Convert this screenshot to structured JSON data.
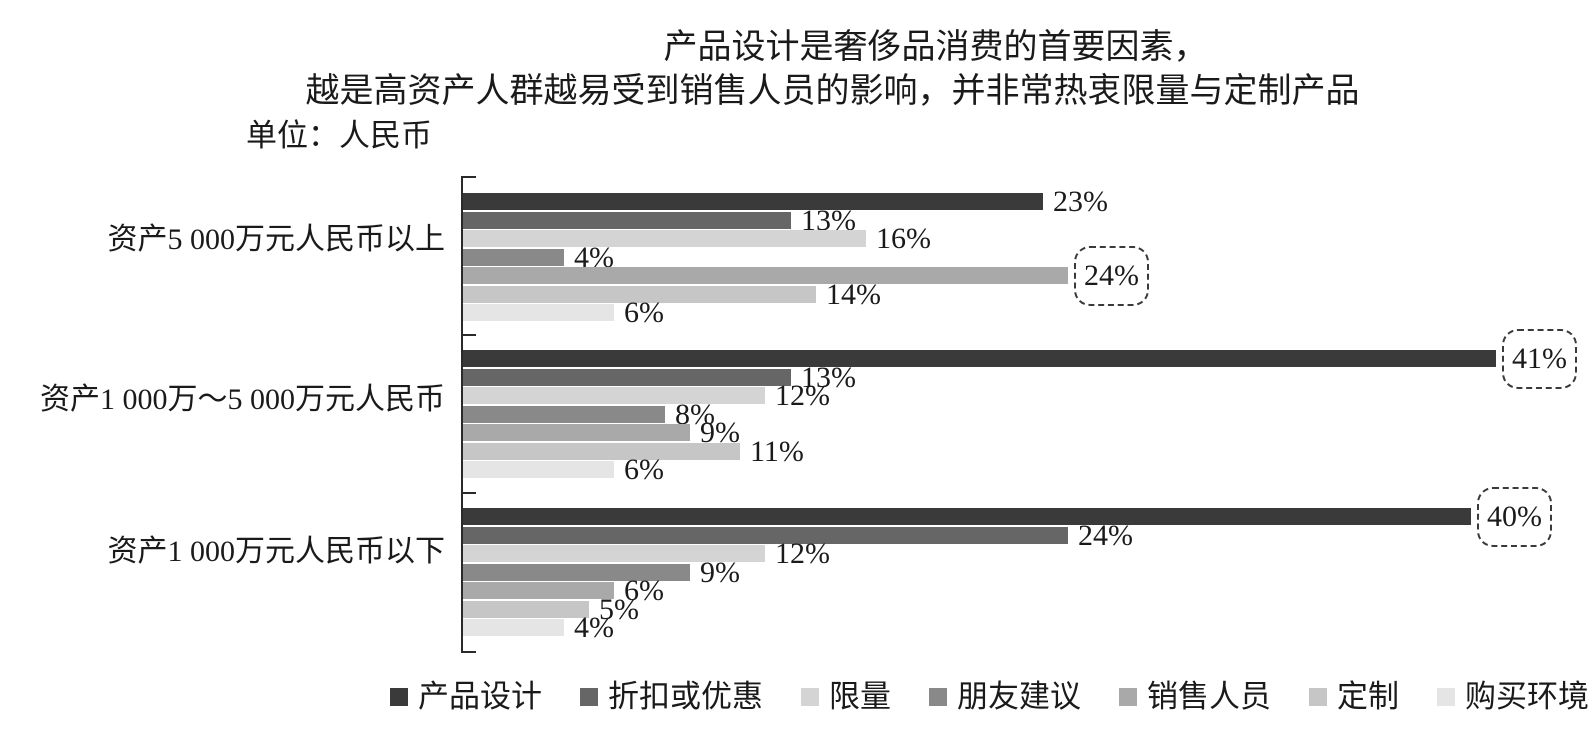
{
  "chart_data": {
    "type": "bar",
    "orientation": "horizontal",
    "title_lines": [
      "产品设计是奢侈品消费的首要因素，",
      "越是高资产人群越易受到销售人员的影响，并非常热衷限量与定制产品"
    ],
    "unit_label": "单位：人民币",
    "categories": [
      "资产5 000万元人民币以上",
      "资产1 000万～5 000万元人民币",
      "资产1 000万元人民币以下"
    ],
    "value_suffix": "%",
    "xlim": [
      0,
      45
    ],
    "grid": false,
    "legend_position": "bottom",
    "axis_color": "#2a2a2a",
    "highlight_box_style": "dashed-rounded",
    "series": [
      {
        "name": "产品设计",
        "color": "#3a3a3a",
        "values": [
          23,
          41,
          40
        ],
        "boxed": [
          false,
          true,
          true
        ]
      },
      {
        "name": "折扣或优惠",
        "color": "#666666",
        "values": [
          13,
          13,
          24
        ],
        "boxed": [
          false,
          false,
          false
        ]
      },
      {
        "name": "限量",
        "color": "#d4d4d4",
        "values": [
          16,
          12,
          12
        ],
        "boxed": [
          false,
          false,
          false
        ]
      },
      {
        "name": "朋友建议",
        "color": "#898989",
        "values": [
          4,
          8,
          9
        ],
        "boxed": [
          false,
          false,
          false
        ]
      },
      {
        "name": "销售人员",
        "color": "#a9a9a9",
        "values": [
          24,
          9,
          6
        ],
        "boxed": [
          true,
          false,
          false
        ]
      },
      {
        "name": "定制",
        "color": "#c6c6c6",
        "values": [
          14,
          11,
          5
        ],
        "boxed": [
          false,
          false,
          false
        ]
      },
      {
        "name": "购买环境",
        "color": "#e5e5e5",
        "values": [
          6,
          6,
          4
        ],
        "boxed": [
          false,
          false,
          false
        ]
      }
    ]
  }
}
